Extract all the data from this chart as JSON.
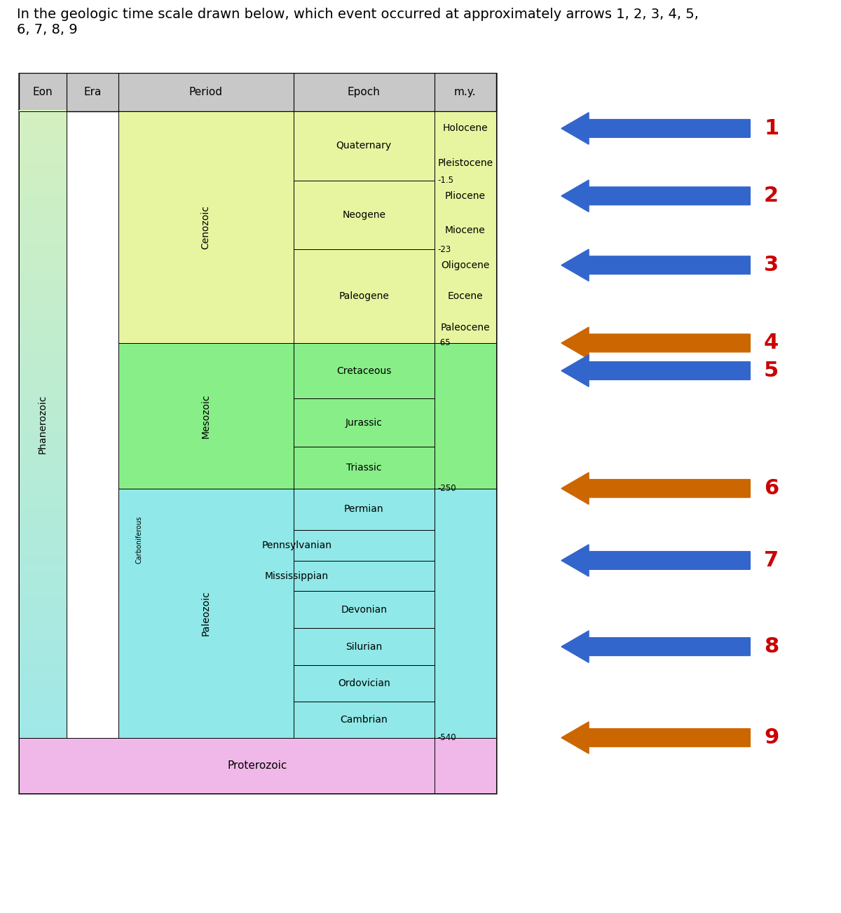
{
  "title_text": "In the geologic time scale drawn below, which event occurred at approximately arrows 1, 2, 3, 4, 5,\n6, 7, 8, 9",
  "header_bg": "#c8c8c8",
  "headers": [
    "Eon",
    "Era",
    "Period",
    "Epoch",
    "m.y."
  ],
  "colors": {
    "cenozoic_era": "#e8f5a0",
    "mesozoic_era": "#88ee88",
    "paleozoic_era": "#90e8e8",
    "proterozoic": "#f0b8e8",
    "arrow_blue": "#3366cc",
    "arrow_orange": "#cc6600",
    "number_red": "#cc0000"
  },
  "arrows": [
    {
      "num": 1,
      "color": "blue"
    },
    {
      "num": 2,
      "color": "blue"
    },
    {
      "num": 3,
      "color": "blue"
    },
    {
      "num": 4,
      "color": "orange"
    },
    {
      "num": 5,
      "color": "blue"
    },
    {
      "num": 6,
      "color": "orange"
    },
    {
      "num": 7,
      "color": "blue"
    },
    {
      "num": 8,
      "color": "blue"
    },
    {
      "num": 9,
      "color": "orange"
    }
  ]
}
